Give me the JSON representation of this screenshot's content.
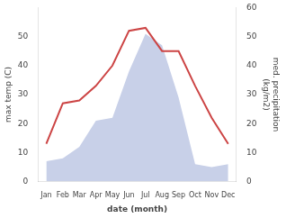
{
  "chart_data": {
    "type": "line",
    "categories": [
      "Jan",
      "Feb",
      "Mar",
      "Apr",
      "May",
      "Jun",
      "Jul",
      "Aug",
      "Sep",
      "Oct",
      "Nov",
      "Dec"
    ],
    "series": [
      {
        "type": "area",
        "axis": "y2",
        "color": "#c8d0e8",
        "values": [
          7,
          8,
          12,
          21,
          22,
          38,
          51,
          47,
          29,
          6,
          5,
          6
        ]
      },
      {
        "type": "line",
        "color": "#cc4444",
        "values": [
          13,
          27,
          28,
          33,
          40,
          52,
          53,
          45,
          45,
          33,
          22,
          13
        ]
      }
    ],
    "xlabel": "date (month)",
    "ylabel": "max temp (C)",
    "y2label": "med. precipitation\n(kg/m2)",
    "ylim": [
      0,
      60
    ],
    "yticks": [
      0,
      10,
      20,
      30,
      40,
      50
    ],
    "y2lim": [
      0,
      60
    ],
    "y2ticks": [
      0,
      10,
      20,
      30,
      40,
      50,
      60
    ],
    "grid": false
  }
}
